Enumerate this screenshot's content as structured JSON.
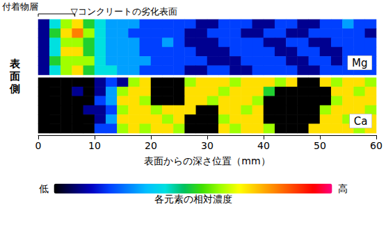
{
  "chart_data": {
    "type": "heatmap",
    "x_label": "表面からの深さ位置（mm）",
    "side_label": "表面側",
    "xlim": [
      0,
      60
    ],
    "xticks": [
      0,
      10,
      20,
      30,
      40,
      50,
      60
    ],
    "grid": false,
    "cell_x": [
      1,
      3,
      5,
      7,
      9,
      11,
      13,
      15,
      17,
      19,
      21,
      23,
      25,
      27,
      29,
      31,
      33,
      35,
      37,
      39,
      41,
      43,
      45,
      47,
      49,
      51,
      53,
      55,
      57,
      59
    ],
    "panels": [
      {
        "label": "Mg",
        "cells": [
          [
            1,
            4,
            6,
            7,
            5,
            4,
            3,
            3,
            3,
            2,
            2,
            2,
            2,
            2,
            1,
            1,
            2,
            2,
            2,
            1,
            1,
            2,
            2,
            1,
            1,
            2,
            2,
            3,
            2,
            2
          ],
          [
            1,
            5,
            7,
            8,
            6,
            4,
            3,
            3,
            2,
            2,
            2,
            2,
            2,
            1,
            1,
            2,
            2,
            2,
            1,
            1,
            2,
            2,
            1,
            1,
            2,
            2,
            2,
            2,
            2,
            1
          ],
          [
            1,
            4,
            6,
            6,
            5,
            4,
            3,
            3,
            3,
            2,
            2,
            3,
            2,
            1,
            1,
            1,
            2,
            2,
            2,
            2,
            1,
            1,
            2,
            2,
            1,
            1,
            2,
            2,
            2,
            2
          ],
          [
            1,
            4,
            7,
            7,
            5,
            4,
            3,
            3,
            3,
            2,
            2,
            2,
            2,
            2,
            1,
            1,
            1,
            2,
            2,
            2,
            2,
            1,
            1,
            2,
            2,
            1,
            1,
            2,
            2,
            2
          ],
          [
            1,
            5,
            6,
            6,
            6,
            4,
            3,
            3,
            3,
            3,
            2,
            2,
            2,
            2,
            2,
            1,
            1,
            1,
            2,
            2,
            2,
            2,
            1,
            1,
            2,
            2,
            1,
            2,
            2,
            2
          ],
          [
            1,
            4,
            6,
            7,
            5,
            4,
            4,
            3,
            3,
            2,
            2,
            2,
            2,
            1,
            1,
            2,
            2,
            1,
            1,
            2,
            2,
            2,
            2,
            1,
            1,
            2,
            2,
            2,
            2,
            2
          ]
        ]
      },
      {
        "label": "Ca",
        "cells": [
          [
            0,
            0,
            0,
            0,
            0,
            1,
            2,
            1,
            6,
            7,
            0,
            0,
            0,
            6,
            7,
            7,
            7,
            6,
            7,
            7,
            7,
            6,
            7,
            0,
            0,
            7,
            6,
            7,
            7,
            6
          ],
          [
            0,
            0,
            0,
            1,
            0,
            1,
            3,
            6,
            7,
            7,
            0,
            0,
            0,
            7,
            7,
            7,
            6,
            7,
            7,
            7,
            5,
            0,
            0,
            0,
            0,
            0,
            7,
            7,
            6,
            7
          ],
          [
            0,
            0,
            0,
            0,
            0,
            2,
            3,
            7,
            7,
            6,
            0,
            0,
            0,
            7,
            7,
            6,
            7,
            7,
            7,
            6,
            0,
            0,
            0,
            0,
            0,
            0,
            6,
            7,
            7,
            7
          ],
          [
            0,
            0,
            0,
            0,
            1,
            1,
            2,
            6,
            7,
            7,
            6,
            7,
            7,
            7,
            0,
            0,
            7,
            7,
            6,
            7,
            0,
            0,
            0,
            0,
            0,
            6,
            7,
            7,
            7,
            6
          ],
          [
            0,
            0,
            0,
            0,
            0,
            1,
            3,
            7,
            7,
            7,
            7,
            6,
            7,
            0,
            0,
            0,
            6,
            7,
            7,
            7,
            0,
            0,
            0,
            0,
            0,
            7,
            7,
            6,
            7,
            7
          ],
          [
            0,
            0,
            0,
            0,
            0,
            2,
            2,
            6,
            7,
            6,
            7,
            7,
            6,
            0,
            0,
            0,
            7,
            6,
            7,
            7,
            6,
            0,
            0,
            0,
            7,
            7,
            7,
            7,
            6,
            7
          ]
        ]
      }
    ],
    "annotations": [
      {
        "text": "付着物層",
        "span": [
          0,
          6.5
        ]
      },
      {
        "text": "▽コンクリートの劣化表面",
        "x": 6.5
      }
    ],
    "colorbar": {
      "title": "各元素の相対濃度",
      "low_label": "低",
      "high_label": "高",
      "range": [
        0,
        10
      ]
    }
  }
}
